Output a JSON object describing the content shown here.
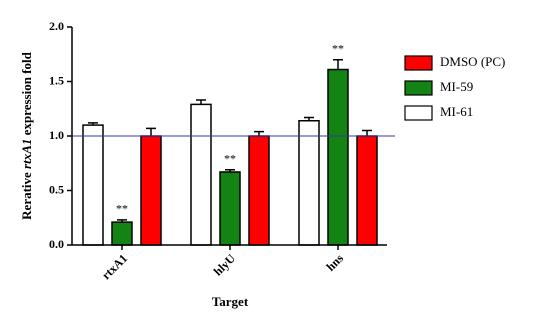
{
  "chart_data": {
    "type": "bar",
    "ylabel": [
      "Rerative ",
      "rtxA1",
      " expression fold"
    ],
    "xlabel": "Target",
    "categories": [
      "rtxA1",
      "hlyU",
      "hns"
    ],
    "series": [
      {
        "name": "MI-61",
        "color": "#ffffff",
        "values": [
          1.1,
          1.29,
          1.14
        ],
        "errors": [
          0.02,
          0.04,
          0.03
        ]
      },
      {
        "name": "MI-59",
        "color": "#138313",
        "values": [
          0.21,
          0.67,
          1.61
        ],
        "errors": [
          0.02,
          0.02,
          0.09
        ],
        "annotations": [
          "**",
          "**",
          "**"
        ]
      },
      {
        "name": "DMSO (PC)",
        "color": "#ff0000",
        "values": [
          1.0,
          1.0,
          1.0
        ],
        "errors": [
          0.07,
          0.04,
          0.05
        ]
      }
    ],
    "legend_order": [
      2,
      1,
      0
    ],
    "reference_line": {
      "value": 1,
      "color": "#3a3aa8"
    },
    "ylim": [
      0,
      2
    ],
    "yticks": [
      {
        "value": 0,
        "label": "0.0"
      },
      0.5,
      {
        "value": 1,
        "label": "1.0"
      },
      1.5,
      {
        "value": 2,
        "label": "2.0"
      }
    ]
  }
}
